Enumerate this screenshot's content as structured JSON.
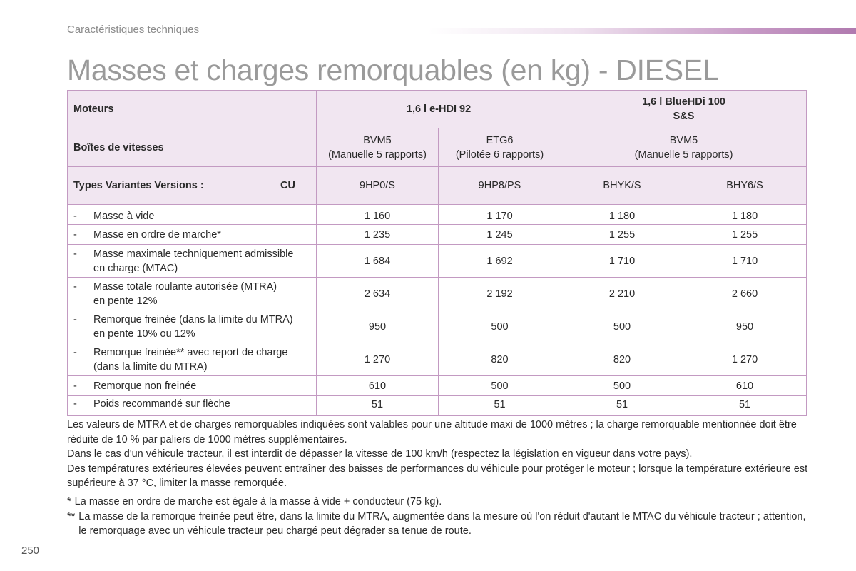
{
  "header": {
    "section": "Caractéristiques techniques",
    "title": "Masses et charges remorquables (en kg) - DIESEL"
  },
  "table": {
    "motors_label": "Moteurs",
    "motor_1": "1,6 l e-HDI 92",
    "motor_2_line1": "1,6 l BlueHDi 100",
    "motor_2_line2": "S&S",
    "gearbox_label": "Boîtes de vitesses",
    "gearboxes": [
      {
        "name": "BVM5",
        "detail": "(Manuelle 5 rapports)"
      },
      {
        "name": "ETG6",
        "detail": "(Pilotée 6 rapports)"
      },
      {
        "name": "BVM5",
        "detail": "(Manuelle 5 rapports)"
      }
    ],
    "types_label": "Types Variantes Versions :",
    "types_suffix": "CU",
    "types": [
      "9HP0/S",
      "9HP8/PS",
      "BHYK/S",
      "BHY6/S"
    ],
    "rows": [
      {
        "dash": "-",
        "label_1": "Masse à vide",
        "label_2": "",
        "values": [
          "1 160",
          "1 170",
          "1 180",
          "1 180"
        ]
      },
      {
        "dash": "-",
        "label_1": "Masse en ordre de marche*",
        "label_2": "",
        "values": [
          "1 235",
          "1 245",
          "1 255",
          "1 255"
        ]
      },
      {
        "dash": "-",
        "label_1": "Masse maximale techniquement admissible",
        "label_2": "en charge (MTAC)",
        "values": [
          "1 684",
          "1 692",
          "1 710",
          "1 710"
        ]
      },
      {
        "dash": "-",
        "label_1": "Masse totale roulante autorisée (MTRA)",
        "label_2": "en pente 12%",
        "values": [
          "2 634",
          "2 192",
          "2 210",
          "2 660"
        ]
      },
      {
        "dash": "-",
        "label_1": "Remorque freinée (dans la limite du MTRA)",
        "label_2": "en pente 10% ou 12%",
        "values": [
          "950",
          "500",
          "500",
          "950"
        ]
      },
      {
        "dash": "-",
        "label_1": "Remorque freinée** avec report de charge",
        "label_2": "(dans la limite du MTRA)",
        "values": [
          "1 270",
          "820",
          "820",
          "1 270"
        ]
      },
      {
        "dash": "-",
        "label_1": "Remorque non freinée",
        "label_2": "",
        "values": [
          "610",
          "500",
          "500",
          "610"
        ]
      },
      {
        "dash": "-",
        "label_1": "Poids recommandé sur flèche",
        "label_2": "",
        "values": [
          "51",
          "51",
          "51",
          "51"
        ]
      }
    ]
  },
  "notes": [
    "Les valeurs de MTRA et de charges remorquables indiquées sont valables pour une altitude maxi de 1000 mètres ; la charge remorquable mentionnée doit être réduite de 10 % par paliers de 1000 mètres supplémentaires.",
    "Dans le cas d'un véhicule tracteur, il est interdit de dépasser la vitesse de 100 km/h (respectez la législation en vigueur dans votre pays).",
    "Des températures extérieures élevées peuvent entraîner des baisses de performances du véhicule pour protéger le moteur ; lorsque la température extérieure est supérieure à 37 °C, limiter la masse remorquée."
  ],
  "footnotes": [
    {
      "mark": "*",
      "text": "La masse en ordre de marche est égale à la masse à vide + conducteur (75 kg)."
    },
    {
      "mark": "**",
      "text": "La masse de la remorque freinée peut être, dans la limite du MTRA, augmentée dans la mesure où l'on réduit d'autant le MTAC du véhicule tracteur ; attention, le remorquage avec un véhicule tracteur peu chargé peut dégrader sa tenue de route."
    }
  ],
  "page_number": "250",
  "colors": {
    "accent": "#b07aaf",
    "header_fill": "#f1e6f1",
    "border": "#c39ac2"
  }
}
